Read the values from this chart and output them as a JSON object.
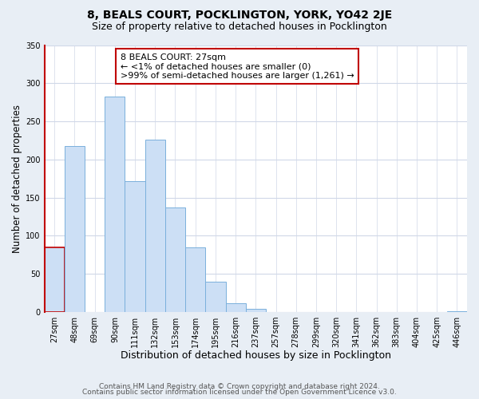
{
  "title": "8, BEALS COURT, POCKLINGTON, YORK, YO42 2JE",
  "subtitle": "Size of property relative to detached houses in Pocklington",
  "xlabel": "Distribution of detached houses by size in Pocklington",
  "ylabel": "Number of detached properties",
  "bar_labels": [
    "27sqm",
    "48sqm",
    "69sqm",
    "90sqm",
    "111sqm",
    "132sqm",
    "153sqm",
    "174sqm",
    "195sqm",
    "216sqm",
    "237sqm",
    "257sqm",
    "278sqm",
    "299sqm",
    "320sqm",
    "341sqm",
    "362sqm",
    "383sqm",
    "404sqm",
    "425sqm",
    "446sqm"
  ],
  "bar_values": [
    85,
    218,
    0,
    282,
    172,
    226,
    137,
    85,
    40,
    12,
    4,
    0,
    0,
    0,
    0,
    0,
    0,
    0,
    0,
    0,
    1
  ],
  "bar_color": "#ccdff5",
  "bar_edge_color": "#7ab0dc",
  "highlight_bar_index": 0,
  "highlight_bar_color": "#ccdff5",
  "highlight_bar_edge_color": "#c00000",
  "annotation_title": "8 BEALS COURT: 27sqm",
  "annotation_line1": "← <1% of detached houses are smaller (0)",
  "annotation_line2": ">99% of semi-detached houses are larger (1,261) →",
  "annotation_box_color": "#ffffff",
  "annotation_box_edge_color": "#c00000",
  "ylim": [
    0,
    350
  ],
  "yticks": [
    0,
    50,
    100,
    150,
    200,
    250,
    300,
    350
  ],
  "footer1": "Contains HM Land Registry data © Crown copyright and database right 2024.",
  "footer2": "Contains public sector information licensed under the Open Government Licence v3.0.",
  "bg_color": "#e8eef5",
  "plot_bg_color": "#ffffff",
  "title_fontsize": 10,
  "subtitle_fontsize": 9,
  "xlabel_fontsize": 9,
  "ylabel_fontsize": 8.5,
  "tick_fontsize": 7,
  "annotation_fontsize": 8,
  "footer_fontsize": 6.5,
  "grid_color": "#d0d8e8",
  "left_spine_color": "#c00000"
}
